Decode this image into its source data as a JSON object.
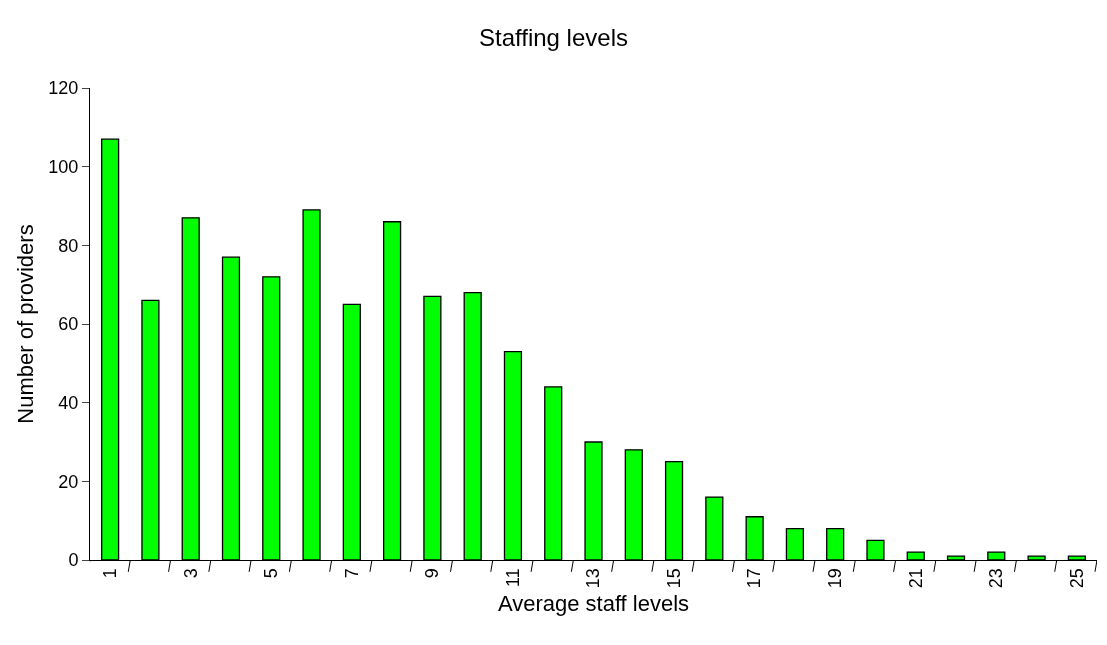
{
  "chart_data": {
    "type": "bar",
    "title": "Staffing levels",
    "xlabel": "Average staff levels",
    "ylabel": "Number of providers",
    "categories": [
      "1",
      null,
      "3",
      null,
      "5",
      null,
      "7",
      null,
      "9",
      null,
      "11",
      null,
      "13",
      null,
      "15",
      null,
      "17",
      null,
      "19",
      null,
      "21",
      null,
      "23",
      null,
      "25"
    ],
    "values": [
      107,
      66,
      87,
      77,
      72,
      89,
      65,
      86,
      67,
      68,
      53,
      44,
      30,
      28,
      25,
      16,
      11,
      8,
      8,
      5,
      2,
      1,
      2,
      1,
      1
    ],
    "color": "#00ff00",
    "ylim": [
      0,
      120
    ],
    "yticks": [
      0,
      20,
      40,
      60,
      80,
      100,
      120
    ]
  }
}
